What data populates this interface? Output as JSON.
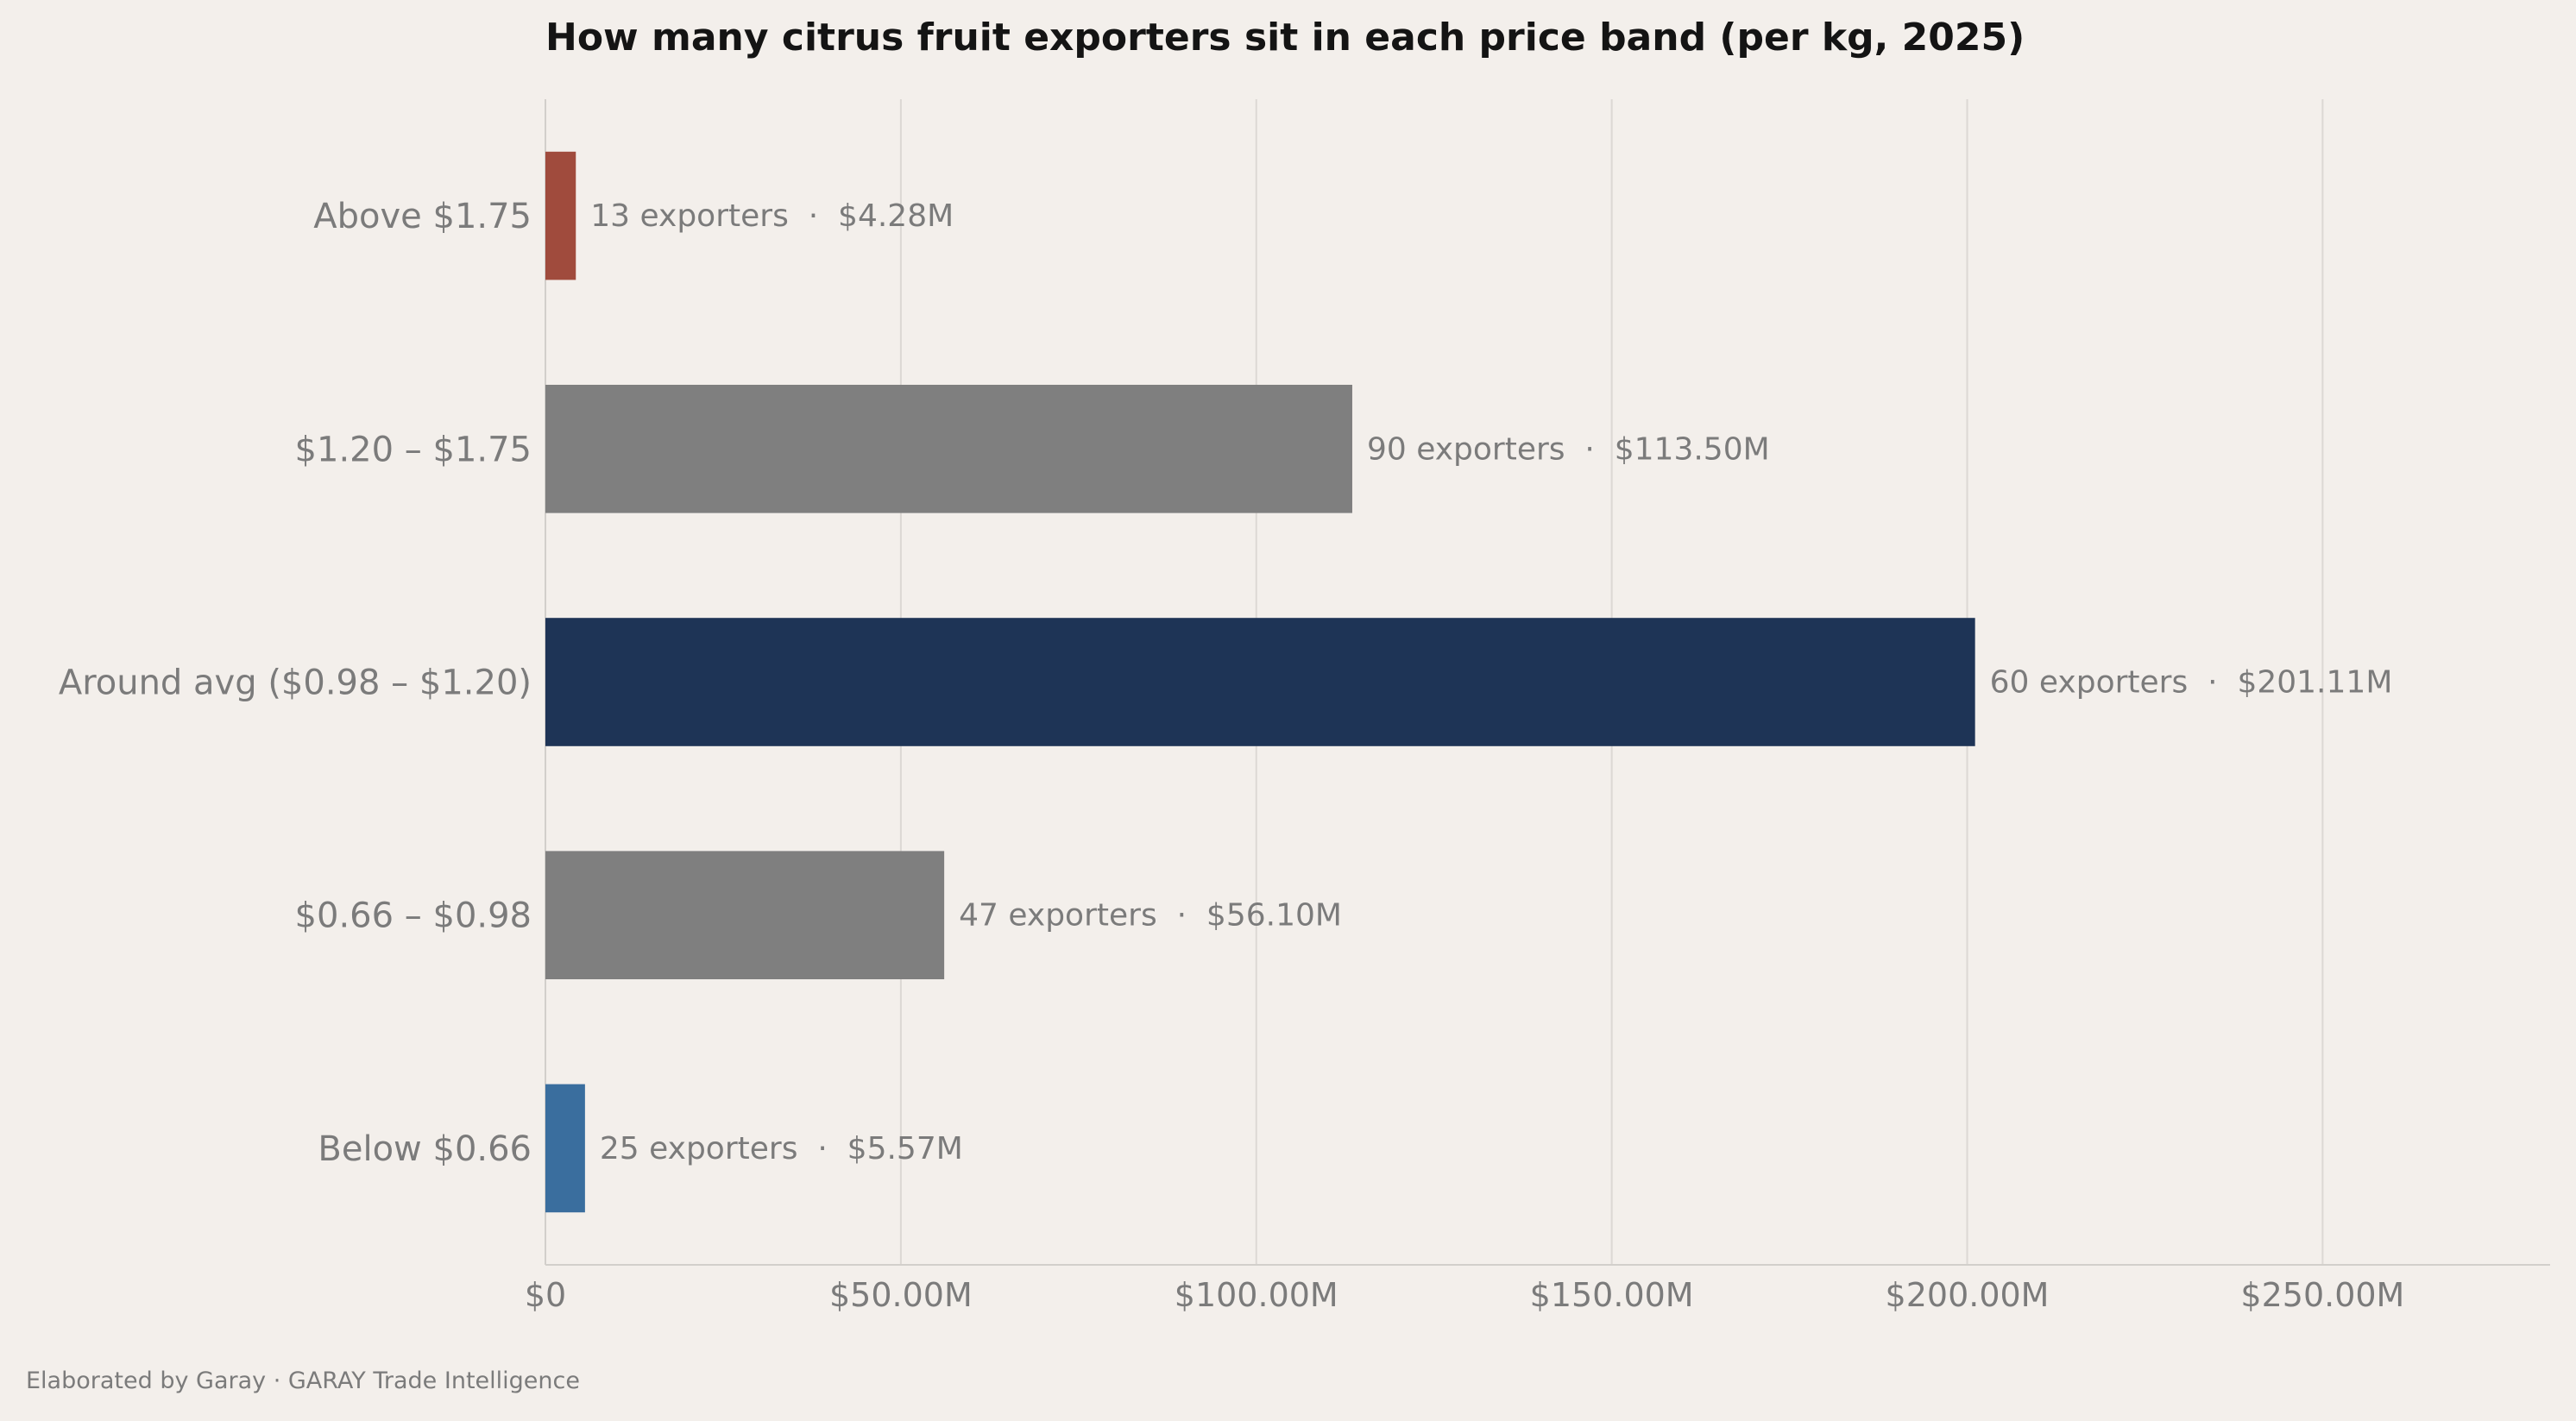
{
  "chart_data": {
    "type": "bar",
    "orientation": "horizontal",
    "title": "How many citrus fruit exporters sit in each price band (per kg, 2025)",
    "xlabel": "",
    "ylabel": "",
    "xlim": [
      0,
      282
    ],
    "x_ticks": [
      0,
      50,
      100,
      150,
      200,
      250
    ],
    "x_tick_labels": [
      "$0",
      "$50.00M",
      "$100.00M",
      "$150.00M",
      "$200.00M",
      "$250.00M"
    ],
    "grid": "vertical",
    "categories": [
      "Above $1.75",
      "$1.20 – $1.75",
      "Around avg ($0.98 – $1.20)",
      "$0.66 – $0.98",
      "Below $0.66"
    ],
    "values": [
      4.28,
      113.5,
      201.11,
      56.1,
      5.57
    ],
    "exporters": [
      13,
      90,
      60,
      47,
      25
    ],
    "data_labels": [
      "13 exporters  ·  $4.28M",
      "90 exporters  ·  $113.50M",
      "60 exporters  ·  $201.11M",
      "47 exporters  ·  $56.10M",
      "25 exporters  ·  $5.57M"
    ],
    "colors": [
      "#a04b3d",
      "#7f7f7f",
      "#1e3456",
      "#7f7f7f",
      "#3a6e9e"
    ]
  },
  "footer": "Elaborated by Garay  ·  GARAY Trade Intelligence"
}
